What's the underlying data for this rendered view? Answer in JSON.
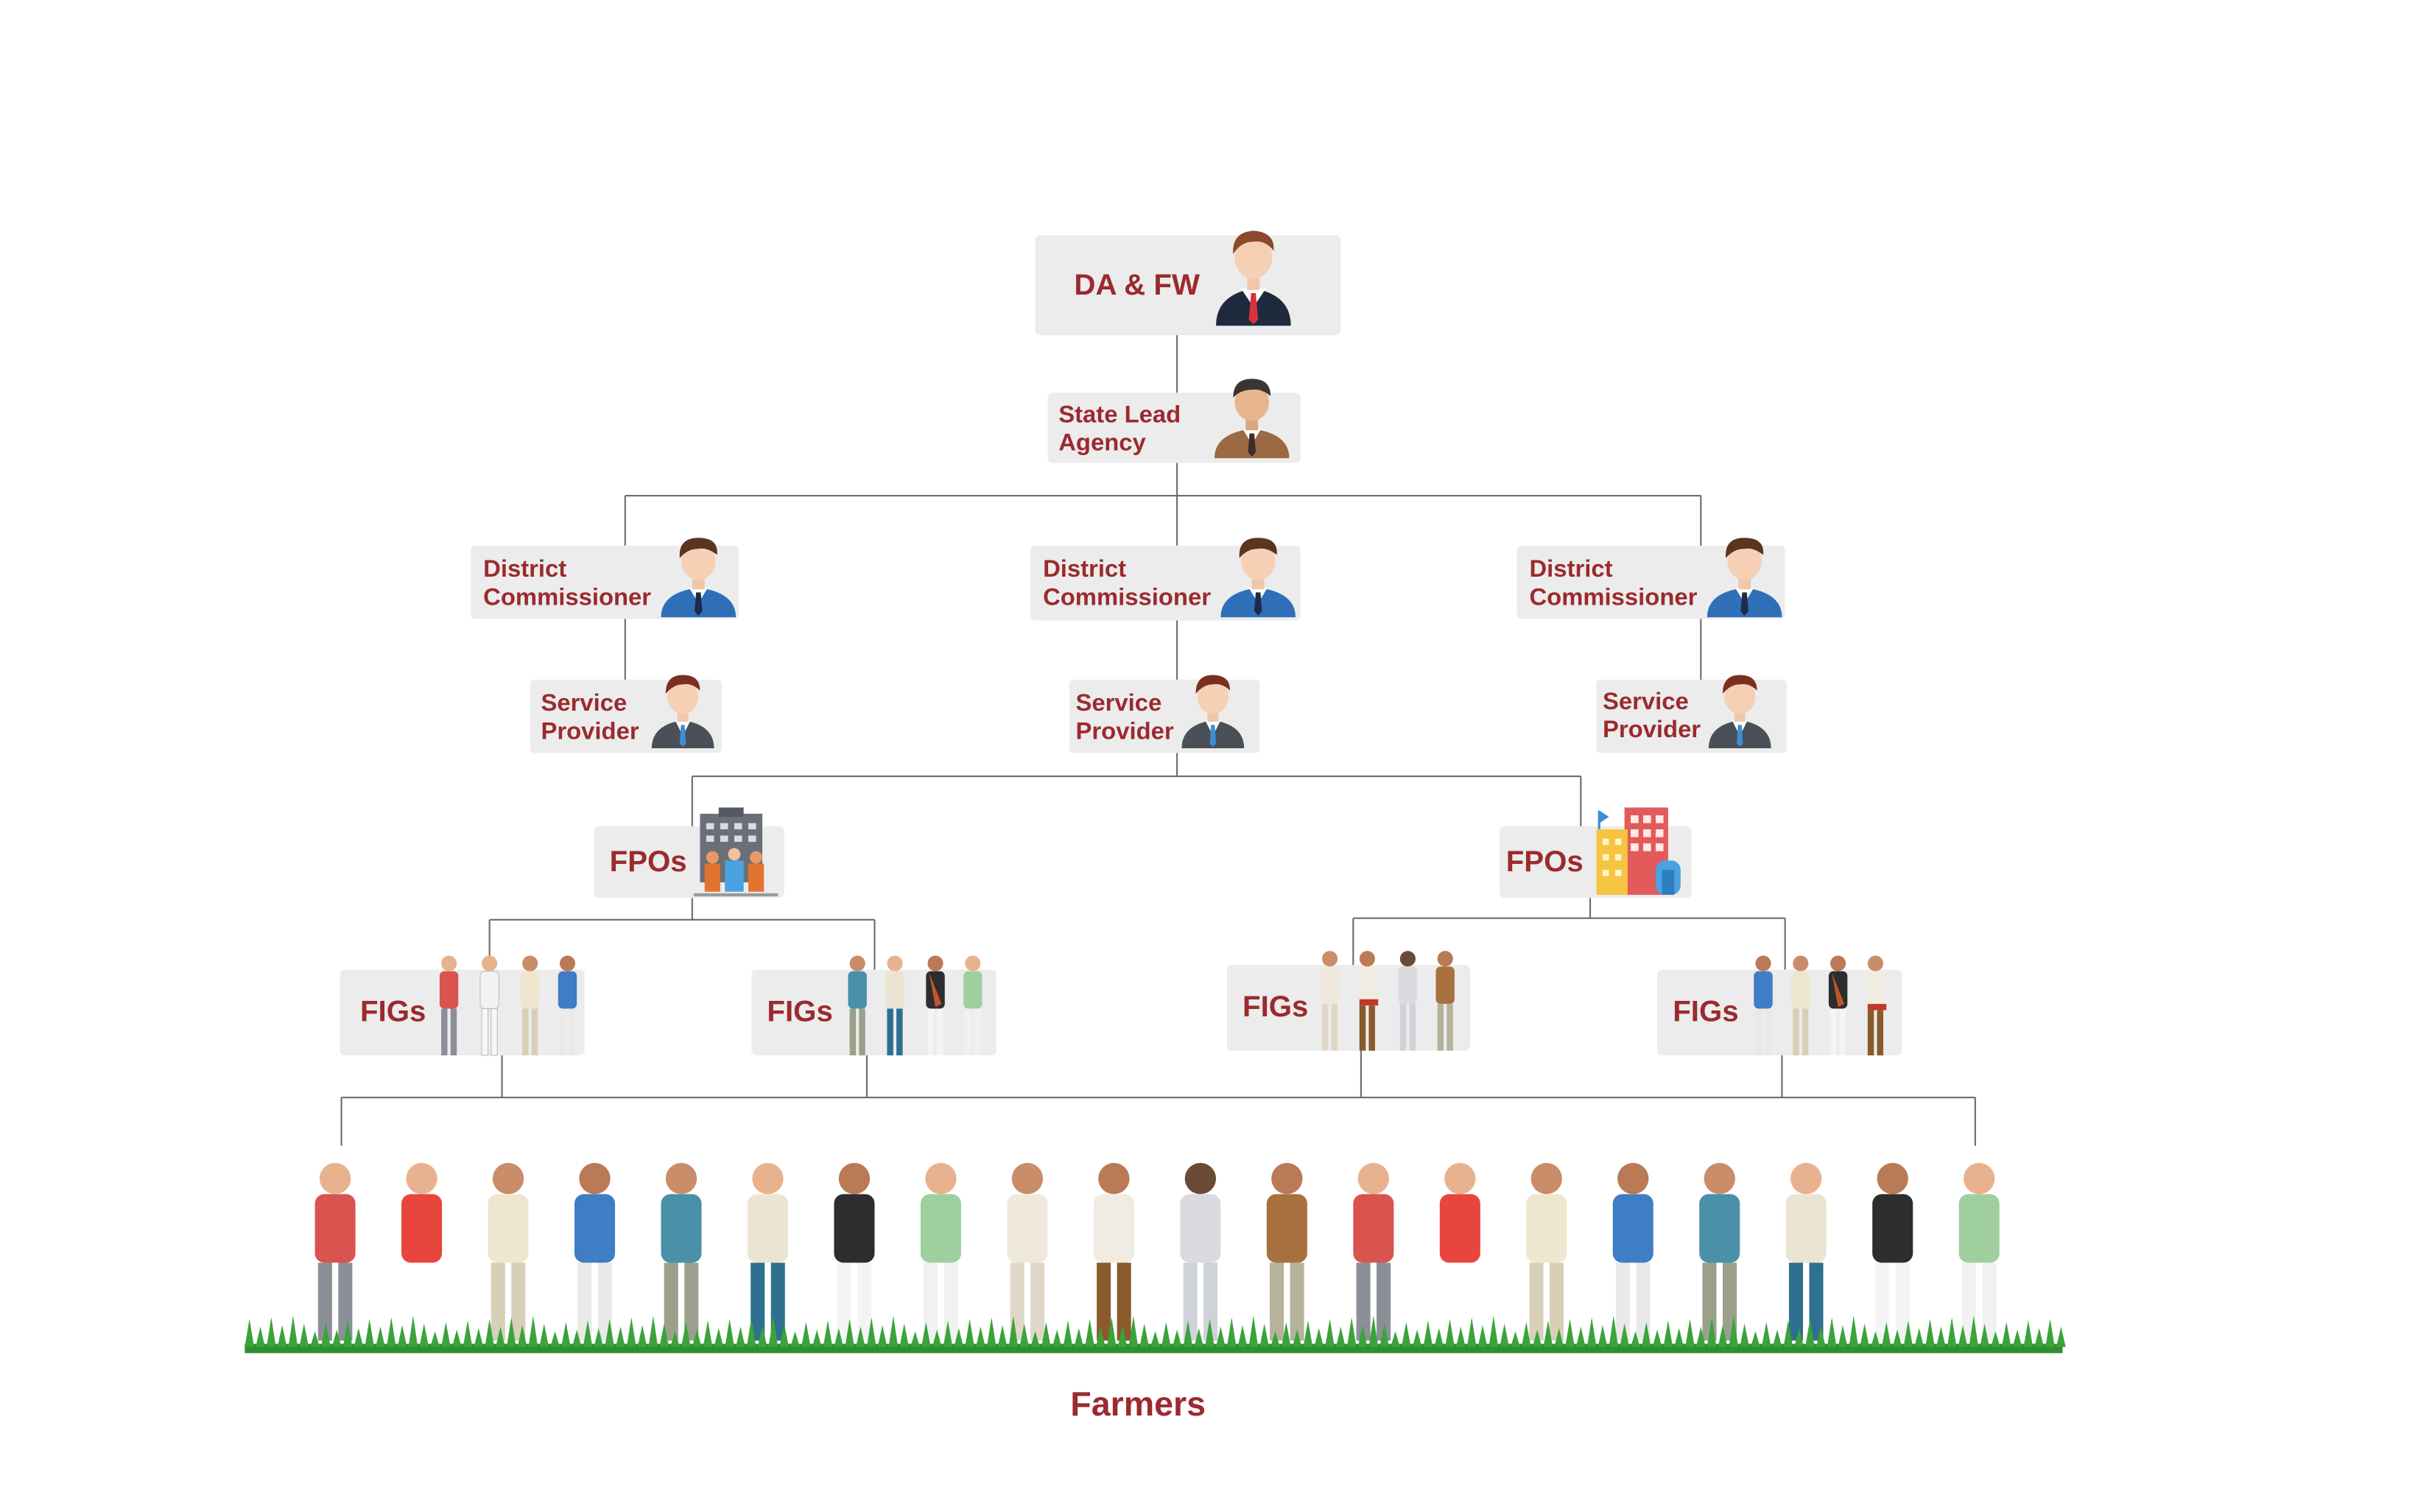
{
  "nodes": {
    "top": {
      "label": "DA & FW",
      "icon": "businessman-red-tie-icon"
    },
    "state_lead": {
      "label": "State Lead\nAgency",
      "icon": "businessman-brown-suit-icon"
    },
    "district_commissioners": [
      {
        "label": "District\nCommissioner",
        "icon": "officer-blue-suit-icon"
      },
      {
        "label": "District\nCommissioner",
        "icon": "officer-blue-suit-icon"
      },
      {
        "label": "District\nCommissioner",
        "icon": "officer-blue-suit-icon"
      }
    ],
    "service_providers": [
      {
        "label": "Service\nProvider",
        "icon": "businessman-grey-suit-icon"
      },
      {
        "label": "Service\nProvider",
        "icon": "businessman-grey-suit-icon"
      },
      {
        "label": "Service\nProvider",
        "icon": "businessman-grey-suit-icon"
      }
    ],
    "fpos": [
      {
        "label": "FPOs",
        "icon": "office-building-group-icon"
      },
      {
        "label": "FPOs",
        "icon": "colorful-buildings-icon"
      }
    ],
    "figs": [
      {
        "label": "FIGs",
        "icon": "farmer-group-icon"
      },
      {
        "label": "FIGs",
        "icon": "farmer-group-icon"
      },
      {
        "label": "FIGs",
        "icon": "farmer-group-icon"
      },
      {
        "label": "FIGs",
        "icon": "farmer-group-icon"
      }
    ]
  },
  "farmers": {
    "label": "Farmers",
    "icon": "farmers-on-grass-illustration"
  },
  "colors": {
    "label": "#9b2a2e",
    "box": "#ececec",
    "connector": "#6b6b6b",
    "grass": "#2f8f2f"
  }
}
